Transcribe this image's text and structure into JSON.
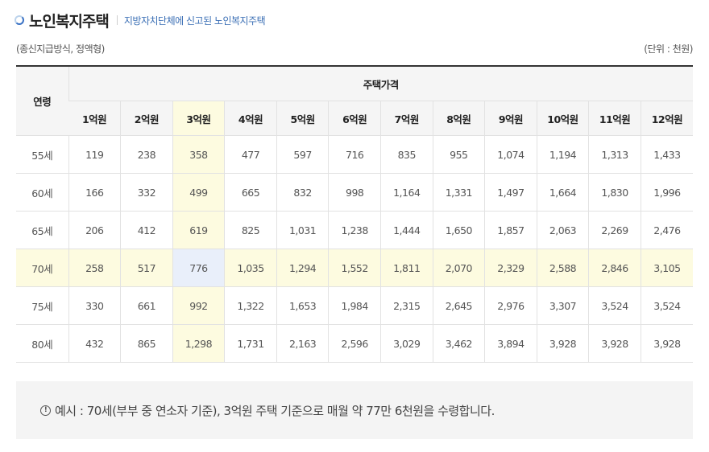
{
  "header": {
    "title": "노인복지주택",
    "subtitle": "지방자치단체에 신고된 노인복지주택",
    "icon": "section-bullet-icon"
  },
  "notes": {
    "method": "(종신지급방식, 정액형)",
    "unit": "(단위 : 천원)"
  },
  "table": {
    "age_header": "연령",
    "price_group_header": "주택가격",
    "prices": [
      "1억원",
      "2억원",
      "3억원",
      "4억원",
      "5억원",
      "6억원",
      "7억원",
      "8억원",
      "9억원",
      "10억원",
      "11억원",
      "12억원"
    ],
    "highlight_color": "#fdfbe0",
    "highlight_cell_color": "#e9effa",
    "rows": [
      {
        "age": "55세",
        "values": [
          "119",
          "238",
          "358",
          "477",
          "597",
          "716",
          "835",
          "955",
          "1,074",
          "1,194",
          "1,313",
          "1,433"
        ]
      },
      {
        "age": "60세",
        "values": [
          "166",
          "332",
          "499",
          "665",
          "832",
          "998",
          "1,164",
          "1,331",
          "1,497",
          "1,664",
          "1,830",
          "1,996"
        ]
      },
      {
        "age": "65세",
        "values": [
          "206",
          "412",
          "619",
          "825",
          "1,031",
          "1,238",
          "1,444",
          "1,650",
          "1,857",
          "2,063",
          "2,269",
          "2,476"
        ]
      },
      {
        "age": "70세",
        "values": [
          "258",
          "517",
          "776",
          "1,035",
          "1,294",
          "1,552",
          "1,811",
          "2,070",
          "2,329",
          "2,588",
          "2,846",
          "3,105"
        ]
      },
      {
        "age": "75세",
        "values": [
          "330",
          "661",
          "992",
          "1,322",
          "1,653",
          "1,984",
          "2,315",
          "2,645",
          "2,976",
          "3,307",
          "3,524",
          "3,524"
        ]
      },
      {
        "age": "80세",
        "values": [
          "432",
          "865",
          "1,298",
          "1,731",
          "2,163",
          "2,596",
          "3,029",
          "3,462",
          "3,894",
          "3,928",
          "3,928",
          "3,928"
        ]
      }
    ]
  },
  "example": {
    "icon": "info-icon",
    "icon_glyph": "!",
    "text": "예시 : 70세(부부 중 연소자 기준), 3억원 주택 기준으로 매월 약 77만 6천원을 수령합니다."
  }
}
